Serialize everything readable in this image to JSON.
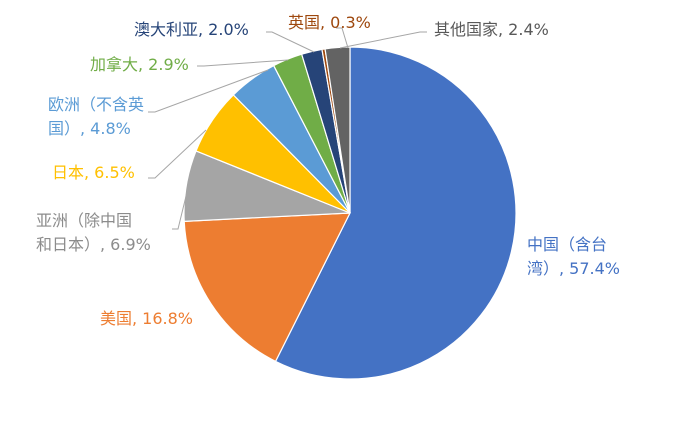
{
  "chart_data": {
    "type": "pie",
    "title": "",
    "legend": "none (data labels with leader lines)",
    "slices": [
      {
        "label": "中国（含台湾）",
        "value": 57.4,
        "value_label": "57.4%",
        "color": "#4472c4",
        "label_color": "#4472c4"
      },
      {
        "label": "美国",
        "value": 16.8,
        "value_label": "16.8%",
        "color": "#ed7d31",
        "label_color": "#ed7d31"
      },
      {
        "label": "亚洲（除中国和日本）",
        "value": 6.9,
        "value_label": "6.9%",
        "color": "#a5a5a5",
        "label_color": "#8c8c8c"
      },
      {
        "label": "日本",
        "value": 6.5,
        "value_label": "6.5%",
        "color": "#ffc000",
        "label_color": "#ffc000"
      },
      {
        "label": "欧洲（不含英国）",
        "value": 4.8,
        "value_label": "4.8%",
        "color": "#5b9bd5",
        "label_color": "#5b9bd5"
      },
      {
        "label": "加拿大",
        "value": 2.9,
        "value_label": "2.9%",
        "color": "#70ad47",
        "label_color": "#70ad47"
      },
      {
        "label": "澳大利亚",
        "value": 2.0,
        "value_label": "2.0%",
        "color": "#264478",
        "label_color": "#264478"
      },
      {
        "label": "英国",
        "value": 0.3,
        "value_label": "0.3%",
        "color": "#9e480e",
        "label_color": "#9e480e"
      },
      {
        "label": "其他国家",
        "value": 2.4,
        "value_label": "2.4%",
        "color": "#636363",
        "label_color": "#595959"
      }
    ],
    "labels_text": [
      {
        "lines": [
          "中国（含台",
          "湾）, 57.4%"
        ]
      },
      {
        "lines": [
          "美国, 16.8%"
        ]
      },
      {
        "lines": [
          "亚洲（除中国",
          "和日本）, 6.9%"
        ]
      },
      {
        "lines": [
          "日本, 6.5%"
        ]
      },
      {
        "lines": [
          "欧洲（不含英",
          "国）, 4.8%"
        ]
      },
      {
        "lines": [
          "加拿大, 2.9%"
        ]
      },
      {
        "lines": [
          "澳大利亚, 2.0%"
        ]
      },
      {
        "lines": [
          "英国, 0.3%"
        ]
      },
      {
        "lines": [
          "其他国家, 2.4%"
        ]
      }
    ]
  }
}
